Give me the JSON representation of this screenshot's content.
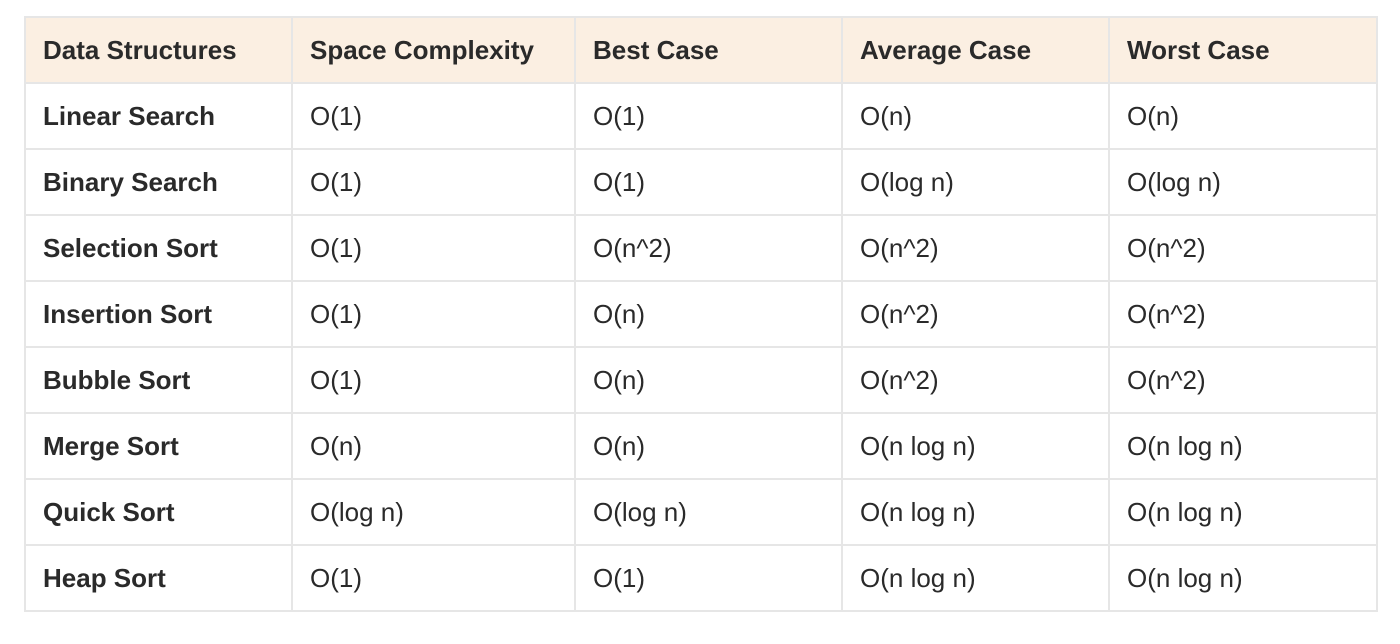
{
  "table": {
    "headers": [
      "Data Structures",
      "Space Complexity",
      "Best Case",
      "Average Case",
      "Worst Case"
    ],
    "rows": [
      {
        "name": "Linear Search",
        "space": "O(1)",
        "best": "O(1)",
        "average": "O(n)",
        "worst": "O(n)"
      },
      {
        "name": "Binary Search",
        "space": "O(1)",
        "best": "O(1)",
        "average": "O(log n)",
        "worst": "O(log n)"
      },
      {
        "name": "Selection Sort",
        "space": "O(1)",
        "best": "O(n^2)",
        "average": "O(n^2)",
        "worst": "O(n^2)"
      },
      {
        "name": "Insertion Sort",
        "space": "O(1)",
        "best": "O(n)",
        "average": "O(n^2)",
        "worst": "O(n^2)"
      },
      {
        "name": "Bubble Sort",
        "space": "O(1)",
        "best": "O(n)",
        "average": "O(n^2)",
        "worst": "O(n^2)"
      },
      {
        "name": "Merge Sort",
        "space": "O(n)",
        "best": "O(n)",
        "average": "O(n log n)",
        "worst": "O(n log n)"
      },
      {
        "name": "Quick Sort",
        "space": "O(log n)",
        "best": "O(log n)",
        "average": "O(n log n)",
        "worst": "O(n log n)"
      },
      {
        "name": "Heap Sort",
        "space": "O(1)",
        "best": "O(1)",
        "average": "O(n log n)",
        "worst": "O(n log n)"
      }
    ]
  },
  "colors": {
    "header_bg": "#fbefe2",
    "border": "#e6e6e6",
    "text": "#2a2a2a"
  }
}
